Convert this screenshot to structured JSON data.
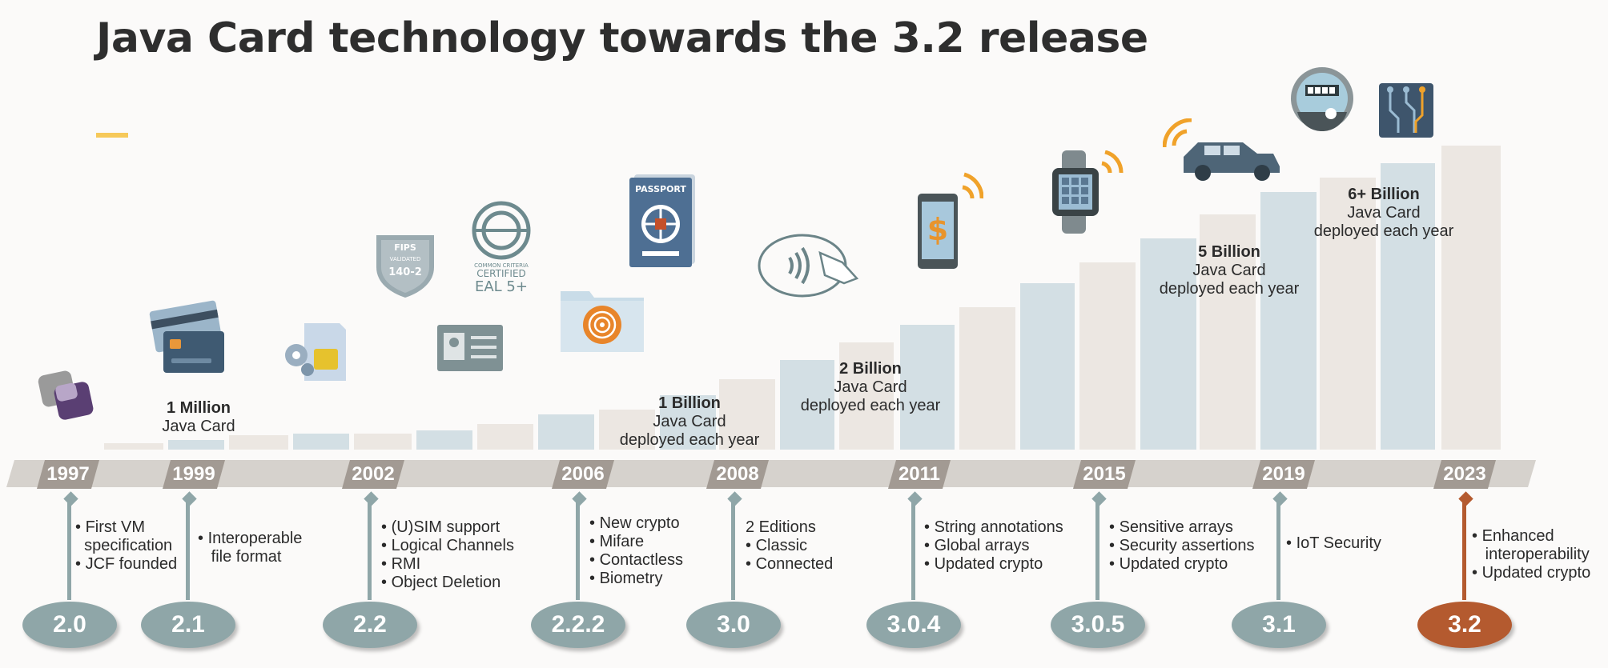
{
  "title": "Java Card technology towards the 3.2 release",
  "colors": {
    "blue_bar": "#d3dfe4",
    "grey_bar": "#ece7e2",
    "band": "#d6d2cd",
    "year_tag": "#a29a93",
    "version": "#8fa6a8",
    "highlight": "#b45a2f",
    "accent": "#f6c95a"
  },
  "annotations": [
    {
      "line1": "1 Million",
      "line2": "Java Card",
      "line3": ""
    },
    {
      "line1": "1 Billion",
      "line2": "Java Card",
      "line3": "deployed each year"
    },
    {
      "line1": "2 Billion",
      "line2": "Java Card",
      "line3": "deployed each year"
    },
    {
      "line1": "5 Billion",
      "line2": "Java Card",
      "line3": "deployed each year"
    },
    {
      "line1": "6+ Billion",
      "line2": "Java Card",
      "line3": "deployed each year"
    }
  ],
  "milestones": [
    {
      "year": "1997",
      "version": "2.0",
      "features": [
        "First VM",
        "specification",
        "JCF founded"
      ]
    },
    {
      "year": "1999",
      "version": "2.1",
      "features": [
        "Interoperable",
        "file format"
      ]
    },
    {
      "year": "2002",
      "version": "2.2",
      "features": [
        "(U)SIM support",
        "Logical Channels",
        "RMI",
        "Object Deletion"
      ]
    },
    {
      "year": "2006",
      "version": "2.2.2",
      "features": [
        "New crypto",
        "Mifare",
        "Contactless",
        "Biometry"
      ]
    },
    {
      "year": "2008",
      "version": "3.0",
      "features": [
        "2 Editions",
        "Classic",
        "Connected"
      ]
    },
    {
      "year": "2011",
      "version": "3.0.4",
      "features": [
        "String annotations",
        "Global arrays",
        "Updated crypto"
      ]
    },
    {
      "year": "2015",
      "version": "3.0.5",
      "features": [
        "Sensitive arrays",
        "Security assertions",
        "Updated crypto"
      ]
    },
    {
      "year": "2019",
      "version": "3.1",
      "features": [
        "IoT Security"
      ]
    },
    {
      "year": "2023",
      "version": "3.2",
      "features": [
        "Enhanced",
        "interoperability",
        "Updated crypto"
      ]
    }
  ],
  "icons": {
    "fips_top": "FIPS",
    "fips_mid": "VALIDATED",
    "fips_num": "140-2",
    "cc_line1": "COMMON CRITERIA",
    "cc_line2": "CERTIFIED",
    "cc_line3": "EAL 5+",
    "passport": "PASSPORT",
    "phone_symbol": "$"
  }
}
